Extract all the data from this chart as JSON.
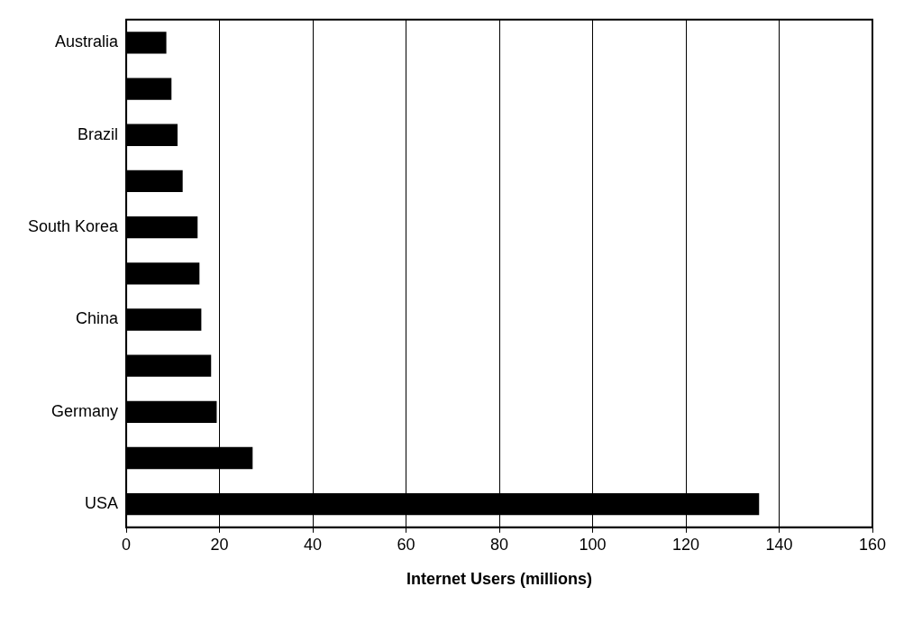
{
  "chart_data": {
    "type": "bar",
    "orientation": "horizontal",
    "xlabel": "Internet Users (millions)",
    "categories": [
      "Australia",
      null,
      "Brazil",
      null,
      "South Korea",
      null,
      "China",
      null,
      "Germany",
      null,
      "USA"
    ],
    "values": [
      8.6,
      9.7,
      11.0,
      12.1,
      15.3,
      15.7,
      16.1,
      18.2,
      19.4,
      27.1,
      135.7
    ],
    "color": "#000000",
    "xlim": [
      0,
      160
    ],
    "xticks": [
      0,
      20,
      40,
      60,
      80,
      100,
      120,
      140,
      160
    ],
    "grid": "x",
    "legend": false
  }
}
